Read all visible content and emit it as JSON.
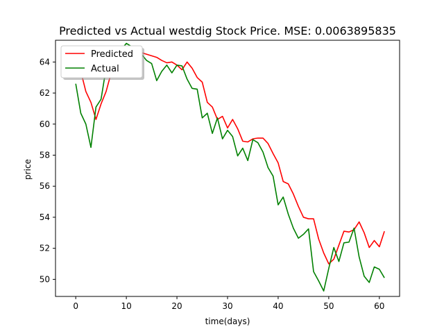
{
  "chart_data": {
    "type": "line",
    "title": "Predicted vs Actual westdig Stock Price. MSE: 0.0063895835",
    "xlabel": "time(days)",
    "ylabel": "price",
    "xlim": [
      -4,
      64
    ],
    "ylim": [
      48.9,
      65.4
    ],
    "xticks": [
      0,
      10,
      20,
      30,
      40,
      50,
      60
    ],
    "yticks": [
      50,
      52,
      54,
      56,
      58,
      60,
      62,
      64
    ],
    "grid": false,
    "legend_position": "top-left",
    "x": [
      0,
      1,
      2,
      3,
      4,
      5,
      6,
      7,
      8,
      9,
      10,
      11,
      12,
      13,
      14,
      15,
      16,
      17,
      18,
      19,
      20,
      21,
      22,
      23,
      24,
      25,
      26,
      27,
      28,
      29,
      30,
      31,
      32,
      33,
      34,
      35,
      36,
      37,
      38,
      39,
      40,
      41,
      42,
      43,
      44,
      45,
      46,
      47,
      48,
      49,
      50,
      51,
      52,
      53,
      54,
      55,
      56,
      57,
      58,
      59,
      60,
      61
    ],
    "series": [
      {
        "name": "Predicted",
        "color": "#ff0000",
        "values": [
          63.8,
          63.4,
          62.1,
          61.4,
          60.3,
          61.3,
          62.1,
          63.3,
          64.0,
          64.3,
          64.5,
          64.4,
          64.6,
          64.6,
          64.5,
          64.4,
          64.3,
          64.1,
          63.95,
          64.0,
          63.8,
          63.5,
          64.0,
          63.6,
          63.0,
          62.7,
          61.4,
          61.1,
          60.3,
          60.5,
          59.75,
          60.3,
          59.7,
          58.9,
          58.85,
          59.05,
          59.1,
          59.1,
          58.75,
          58.1,
          57.5,
          56.3,
          56.15,
          55.5,
          54.7,
          54.0,
          53.9,
          53.9,
          52.6,
          51.7,
          51.0,
          51.3,
          52.2,
          53.1,
          53.05,
          53.2,
          53.7,
          53.0,
          52.05,
          52.5,
          52.1,
          53.1
        ]
      },
      {
        "name": "Actual",
        "color": "#008000",
        "values": [
          62.6,
          60.7,
          60.0,
          58.5,
          61.1,
          61.6,
          63.6,
          64.2,
          64.0,
          64.8,
          65.2,
          65.0,
          64.8,
          64.5,
          64.1,
          63.9,
          62.8,
          63.4,
          63.8,
          63.3,
          63.8,
          63.75,
          62.9,
          62.3,
          62.25,
          60.4,
          60.7,
          59.4,
          60.4,
          59.05,
          59.6,
          59.2,
          57.95,
          58.45,
          57.65,
          59.0,
          58.8,
          58.2,
          57.2,
          56.65,
          54.8,
          55.3,
          54.2,
          53.3,
          52.65,
          52.9,
          53.25,
          50.5,
          49.9,
          49.25,
          50.7,
          52.05,
          51.15,
          52.35,
          52.4,
          53.3,
          51.45,
          50.2,
          49.8,
          50.8,
          50.65,
          50.1
        ]
      }
    ]
  }
}
